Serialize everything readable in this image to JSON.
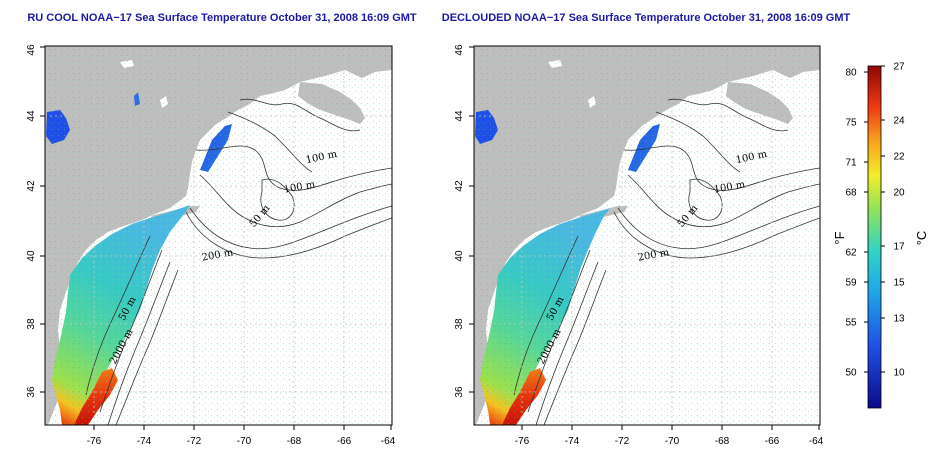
{
  "maps": [
    {
      "id": "left",
      "title": "RU COOL NOAA−17 Sea Surface Temperature October 31, 2008 16:09 GMT",
      "contour_labels": [
        "100 m",
        "100 m",
        "50 m",
        "200 m",
        "50 m",
        "2000 m"
      ]
    },
    {
      "id": "right",
      "title": "DECLOUDED NOAA−17 Sea Surface Temperature October 31, 2008 16:09 GMT",
      "contour_labels": [
        "100 m",
        "100 m",
        "50 m",
        "200 m",
        "50 m",
        "2000 m"
      ]
    }
  ],
  "x_ticks": [
    -76,
    -74,
    -72,
    -70,
    -68,
    -66,
    -64
  ],
  "y_ticks": [
    36,
    38,
    40,
    42,
    44,
    46
  ],
  "colorbar": {
    "f_label": "°F",
    "c_label": "°C",
    "f_ticks": [
      80,
      75,
      71,
      68,
      62,
      59,
      55,
      50
    ],
    "c_ticks": [
      27,
      24,
      22,
      20,
      17,
      15,
      13,
      10
    ],
    "c_range": [
      8,
      27
    ]
  },
  "colors": {
    "land": "#bebebe",
    "title": "#1a1aa6",
    "grid": "#c8c8c8"
  }
}
